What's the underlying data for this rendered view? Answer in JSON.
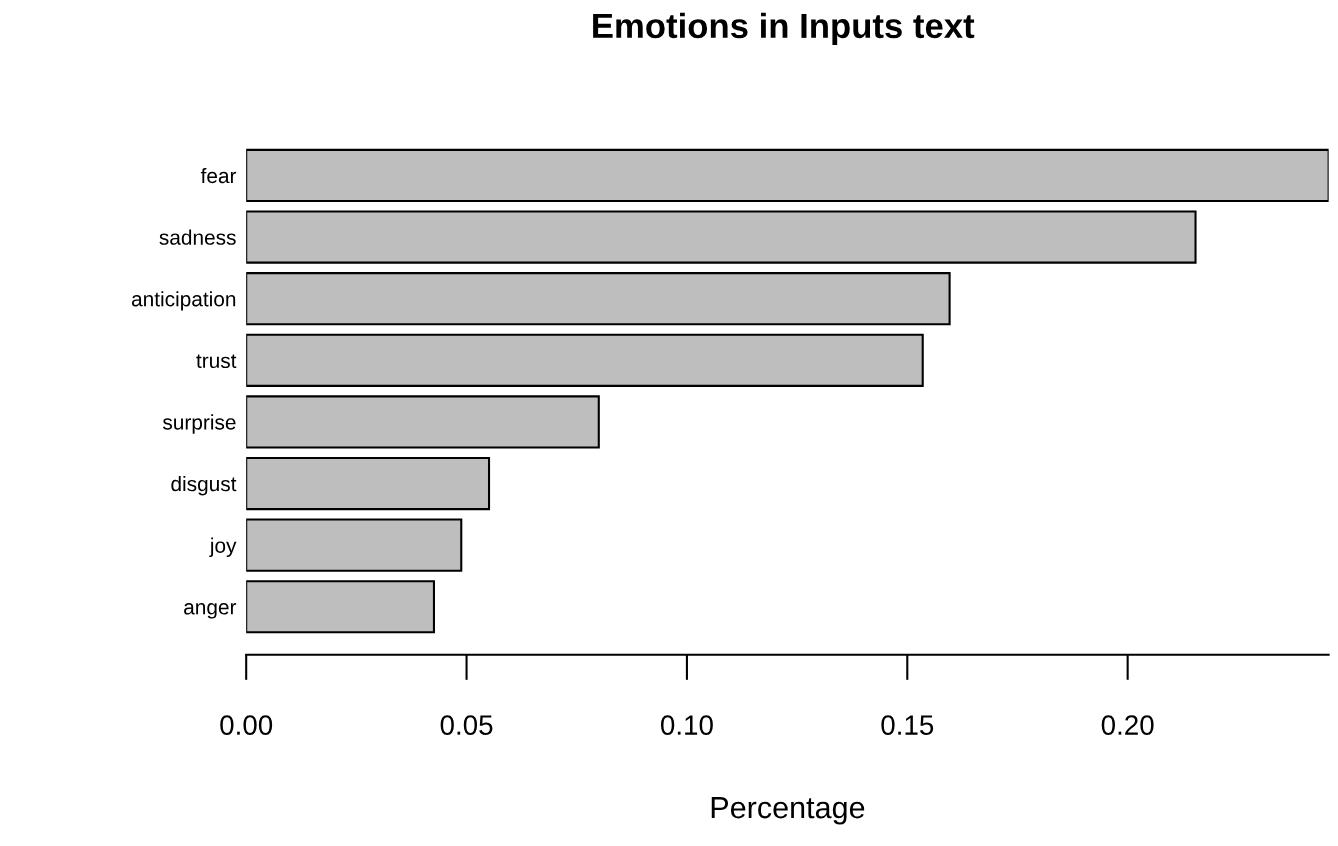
{
  "chart_data": {
    "type": "bar",
    "orientation": "horizontal",
    "title": "Emotions in Inputs text",
    "xlabel": "Percentage",
    "categories": [
      "fear",
      "sadness",
      "anticipation",
      "trust",
      "surprise",
      "disgust",
      "joy",
      "anger"
    ],
    "values": [
      0.2456,
      0.2154,
      0.1596,
      0.1535,
      0.08,
      0.0551,
      0.0488,
      0.0426
    ],
    "color": "#bebebe",
    "xlim": [
      0,
      0.2456
    ],
    "xticks": [
      {
        "value": 0,
        "label": "0.00"
      },
      {
        "value": 0.05,
        "label": "0.05"
      },
      {
        "value": 0.1,
        "label": "0.10"
      },
      {
        "value": 0.15,
        "label": "0.15"
      },
      {
        "value": 0.2,
        "label": "0.20"
      }
    ],
    "grid": false
  }
}
